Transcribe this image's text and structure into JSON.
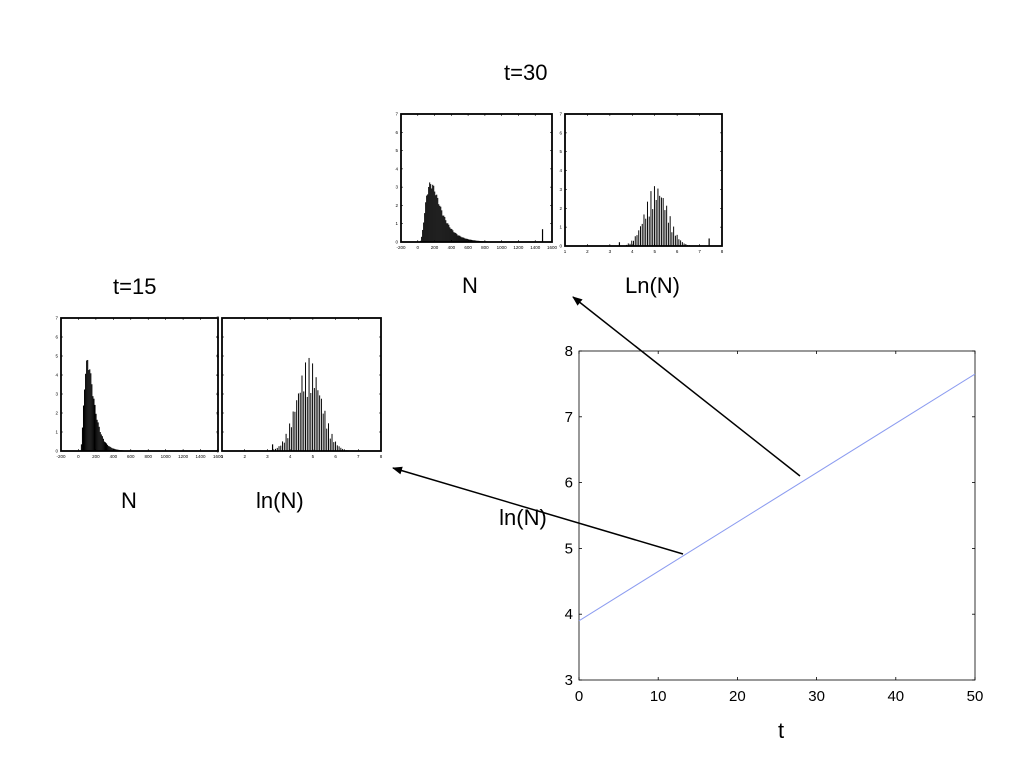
{
  "labels": {
    "t30": "t=30",
    "t15": "t=15",
    "n_top": "N",
    "ln_top": "Ln(N)",
    "n_left": "N",
    "ln_left": "ln(N)"
  },
  "chart_data": [
    {
      "type": "line",
      "id": "lnN_vs_t",
      "xlabel": "t",
      "ylabel": "ln(N)",
      "xlim": [
        0,
        50
      ],
      "ylim": [
        3,
        8
      ],
      "xticks": [
        0,
        10,
        20,
        30,
        40,
        50
      ],
      "yticks": [
        3,
        4,
        5,
        6,
        7,
        8
      ],
      "line_color": "#8c9cf0",
      "x": [
        0,
        50
      ],
      "y": [
        3.9,
        7.65
      ]
    },
    {
      "type": "bar",
      "id": "hist_t30_N",
      "xlabel": "N",
      "xlim": [
        -200,
        1600
      ],
      "xticks": [
        "-200",
        "0",
        "200",
        "400",
        "600",
        "800",
        "1000",
        "1200",
        "1400",
        "1600"
      ],
      "ylim": [
        0,
        7
      ],
      "yticks": [
        "0",
        "1",
        "2",
        "3",
        "4",
        "5",
        "6",
        "7"
      ],
      "peak_x": 200,
      "peak_y": 3.3,
      "distribution": "right-skewed, tail to 1500"
    },
    {
      "type": "bar",
      "id": "hist_t30_lnN",
      "xlabel": "Ln(N)",
      "xlim": [
        1,
        8
      ],
      "xticks": [
        "1",
        "2",
        "3",
        "4",
        "5",
        "6",
        "7",
        "8"
      ],
      "ylim": [
        0,
        7
      ],
      "yticks": [
        "0",
        "1",
        "2",
        "3",
        "4",
        "5",
        "6",
        "7"
      ],
      "peak_x": 5.2,
      "peak_y": 3.3
    },
    {
      "type": "bar",
      "id": "hist_t15_N",
      "xlabel": "N",
      "xlim": [
        -200,
        1600
      ],
      "xticks": [
        "-200",
        "0",
        "200",
        "400",
        "600",
        "800",
        "1000",
        "1200",
        "1400",
        "1600"
      ],
      "ylim": [
        0,
        7
      ],
      "yticks": [
        "0",
        "1",
        "2",
        "3",
        "4",
        "5",
        "6",
        "7"
      ],
      "peak_x": 120,
      "peak_y": 4.9,
      "distribution": "right-skewed, tail to 1400"
    },
    {
      "type": "bar",
      "id": "hist_t15_lnN",
      "xlabel": "ln(N)",
      "xlim": [
        1,
        8
      ],
      "xticks": [
        "1",
        "2",
        "3",
        "4",
        "5",
        "6",
        "7",
        "8"
      ],
      "ylim": [
        0,
        7
      ],
      "yticks": [
        "0",
        "1",
        "2",
        "3",
        "4",
        "5",
        "6",
        "7"
      ],
      "peak_x": 4.9,
      "peak_y": 4.9
    }
  ]
}
